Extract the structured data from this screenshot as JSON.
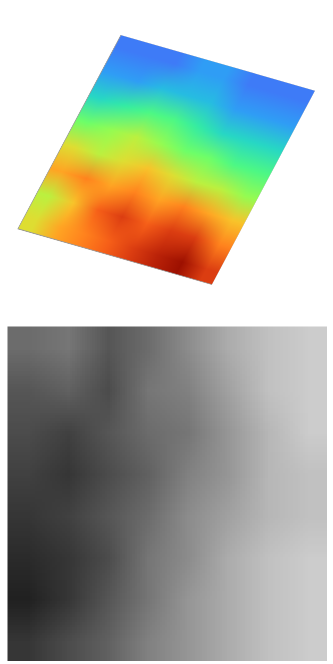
{
  "chart_data": {
    "type": "heatmap",
    "rows": 8,
    "cols": 8,
    "cells": [
      [
        60,
        55,
        70,
        60,
        45,
        30,
        20,
        15
      ],
      [
        70,
        65,
        75,
        55,
        50,
        35,
        20,
        15
      ],
      [
        75,
        80,
        70,
        60,
        55,
        40,
        25,
        15
      ],
      [
        80,
        85,
        75,
        65,
        50,
        40,
        25,
        20
      ],
      [
        85,
        80,
        70,
        60,
        45,
        35,
        25,
        20
      ],
      [
        90,
        85,
        75,
        55,
        45,
        30,
        20,
        15
      ],
      [
        95,
        85,
        70,
        55,
        40,
        30,
        20,
        15
      ],
      [
        85,
        75,
        65,
        50,
        40,
        30,
        20,
        15
      ]
    ],
    "zlim": [
      0,
      100
    ],
    "tick_labels": false
  }
}
